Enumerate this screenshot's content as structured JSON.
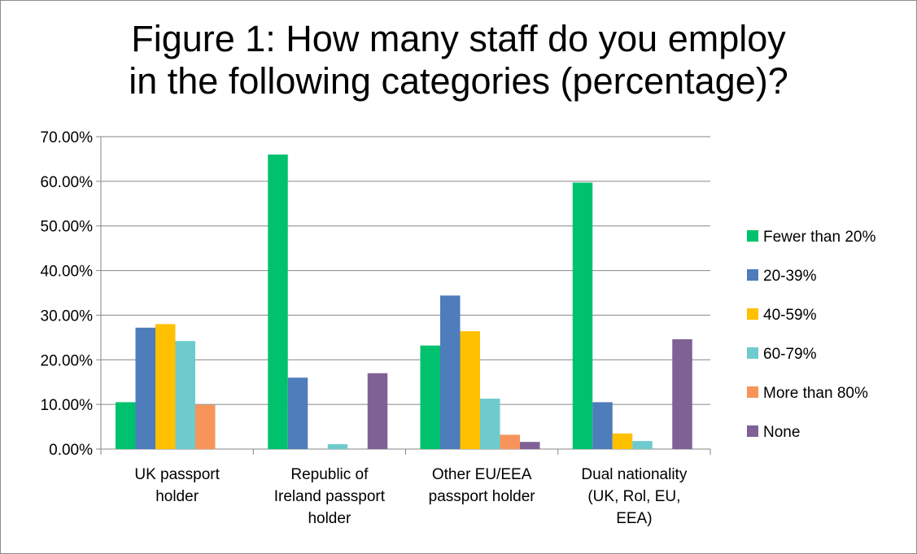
{
  "chart_data": {
    "type": "bar",
    "title_lines": [
      "Figure 1: How many staff do you employ",
      "in the following categories (percentage)?"
    ],
    "categories": [
      [
        "UK passport",
        "holder"
      ],
      [
        "Republic of",
        "Ireland passport",
        "holder"
      ],
      [
        "Other EU/EEA",
        "passport holder"
      ],
      [
        "Dual nationality",
        "(UK, Rol, EU,",
        "EEA)"
      ]
    ],
    "ylim": [
      0,
      70
    ],
    "yticks": [
      0,
      10,
      20,
      30,
      40,
      50,
      60,
      70
    ],
    "ytick_labels": [
      "0.00%",
      "10.00%",
      "20.00%",
      "30.00%",
      "40.00%",
      "50.00%",
      "60.00%",
      "70.00%"
    ],
    "grid": true,
    "legend_position": "right",
    "series": [
      {
        "name": "Fewer than 20%",
        "color": "#00c26e",
        "values": [
          10.5,
          66.0,
          23.2,
          59.7
        ]
      },
      {
        "name": "20-39%",
        "color": "#4f7cba",
        "values": [
          27.2,
          16.0,
          34.4,
          10.5
        ]
      },
      {
        "name": "40-59%",
        "color": "#ffc000",
        "values": [
          28.0,
          0.0,
          26.4,
          3.5
        ]
      },
      {
        "name": "60-79%",
        "color": "#6ecbcd",
        "values": [
          24.2,
          1.1,
          11.3,
          1.8
        ]
      },
      {
        "name": "More than 80%",
        "color": "#f79459",
        "values": [
          9.9,
          0.0,
          3.2,
          0.0
        ]
      },
      {
        "name": "None",
        "color": "#7f6196",
        "values": [
          0.0,
          17.0,
          1.6,
          24.6
        ]
      }
    ]
  }
}
